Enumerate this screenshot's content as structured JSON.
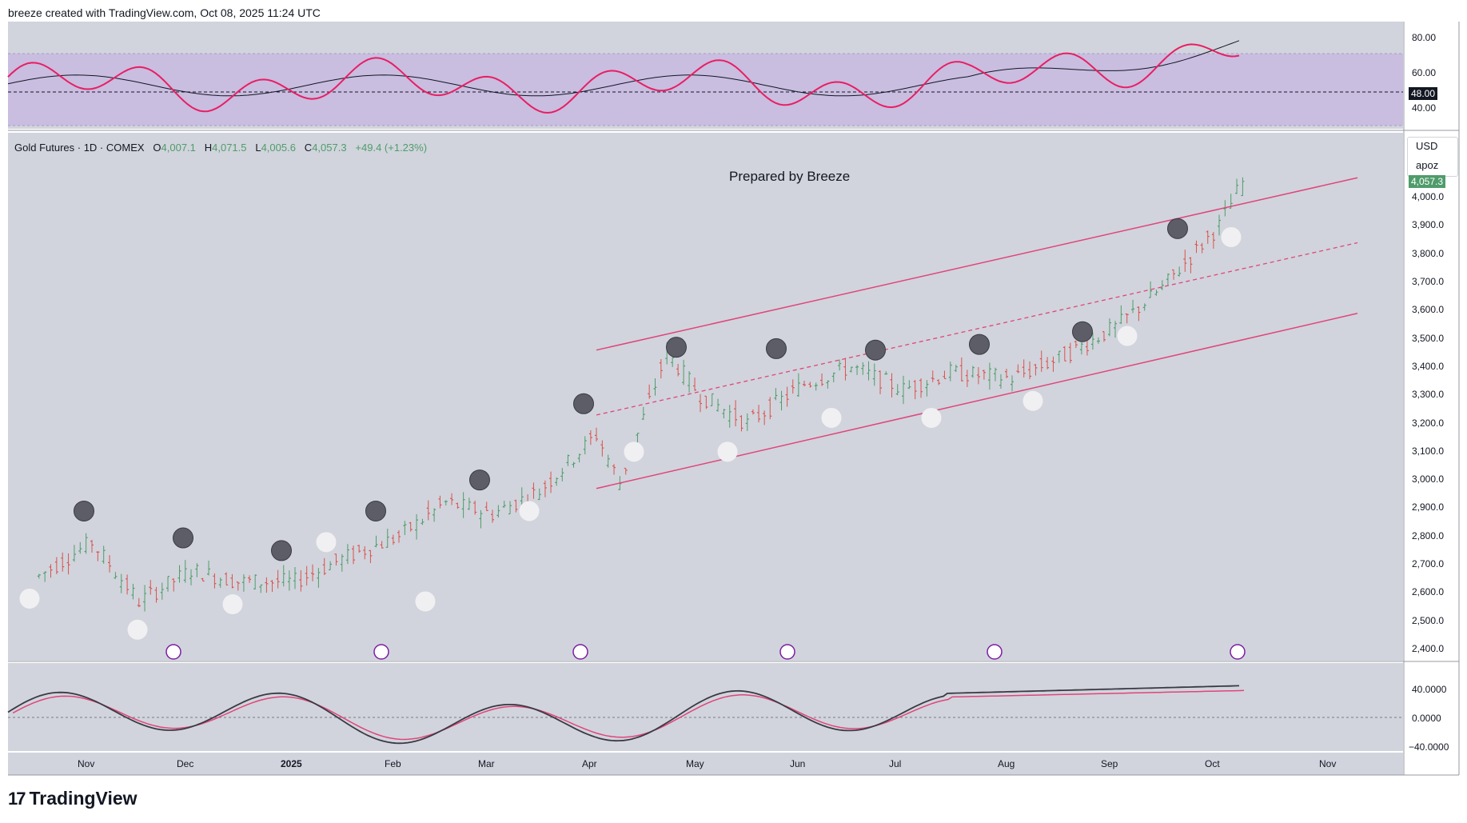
{
  "header": {
    "attribution": "breeze created with TradingView.com, Oct 08, 2025 11:24 UTC"
  },
  "symbol_bar": {
    "name": "Gold Futures · 1D · COMEX",
    "o_label": "O",
    "o_value": "4,007.1",
    "h_label": "H",
    "h_value": "4,071.5",
    "l_label": "L",
    "l_value": "4,005.6",
    "c_label": "C",
    "c_value": "4,057.3",
    "change": "+49.4 (+1.23%)"
  },
  "annotation": {
    "text": "Prepared by Breeze"
  },
  "currency_menu": {
    "currency": "USD",
    "user": "apoz"
  },
  "rsi_panel": {
    "ticks": [
      "80.00",
      "60.00",
      "40.00"
    ],
    "level_tag": "48.00"
  },
  "price_panel": {
    "ticks": [
      "4,000.0",
      "3,900.0",
      "3,800.0",
      "3,700.0",
      "3,600.0",
      "3,500.0",
      "3,400.0",
      "3,300.0",
      "3,200.0",
      "3,100.0",
      "3,000.0",
      "2,900.0",
      "2,800.0",
      "2,700.0",
      "2,600.0",
      "2,500.0",
      "2,400.0"
    ],
    "last_price_tag": "4,057.3"
  },
  "macd_panel": {
    "ticks": [
      "40.0000",
      "0.0000",
      "−40.0000"
    ]
  },
  "time_axis": {
    "labels": [
      "Nov",
      "Dec",
      "2025",
      "Feb",
      "Mar",
      "Apr",
      "May",
      "Jun",
      "Jul",
      "Aug",
      "Sep",
      "Oct",
      "Nov"
    ]
  },
  "footer": {
    "brand": "TradingView"
  },
  "colors": {
    "bg": "#d1d4dc",
    "rsi_line": "#e91e63",
    "rsi_band": "#c9bde0",
    "channel": "#e0457b",
    "up_candle": "#4f9c6b",
    "down_candle": "#d9534f",
    "dark_marker": "#5d5d68",
    "light_marker": "#f0f0f3",
    "event_icon": "#7b1fa2"
  },
  "chart_data": {
    "type": "line",
    "title": "Gold Futures · 1D · COMEX",
    "xlabel": "",
    "ylabel": "",
    "x": [
      "Oct 15",
      "Nov 1",
      "Nov 15",
      "Dec 1",
      "Dec 15",
      "Jan 1",
      "Jan 15",
      "Feb 1",
      "Feb 15",
      "Mar 1",
      "Mar 15",
      "Apr 1",
      "Apr 8",
      "Apr 22",
      "May 1",
      "May 15",
      "Jun 1",
      "Jun 15",
      "Jul 1",
      "Jul 15",
      "Aug 1",
      "Aug 15",
      "Sep 1",
      "Sep 15",
      "Oct 1",
      "Oct 8"
    ],
    "series": [
      {
        "values": [
          2660,
          2780,
          2570,
          2680,
          2640,
          2640,
          2720,
          2800,
          2920,
          2880,
          2960,
          3160,
          2990,
          3450,
          3300,
          3200,
          3340,
          3400,
          3320,
          3380,
          3360,
          3430,
          3540,
          3680,
          3900,
          4057
        ]
      }
    ],
    "ylim": [
      2400,
      4100
    ],
    "channel": {
      "start_x": "Apr 1",
      "end_x": "Nov 1",
      "upper": [
        3460,
        4070
      ],
      "middle": [
        3230,
        3840
      ],
      "lower": [
        2970,
        3590
      ]
    },
    "rsi": {
      "ylim": [
        30,
        90
      ],
      "level": 48
    },
    "macd": {
      "ylim": [
        -40,
        40
      ]
    },
    "grid": false
  }
}
